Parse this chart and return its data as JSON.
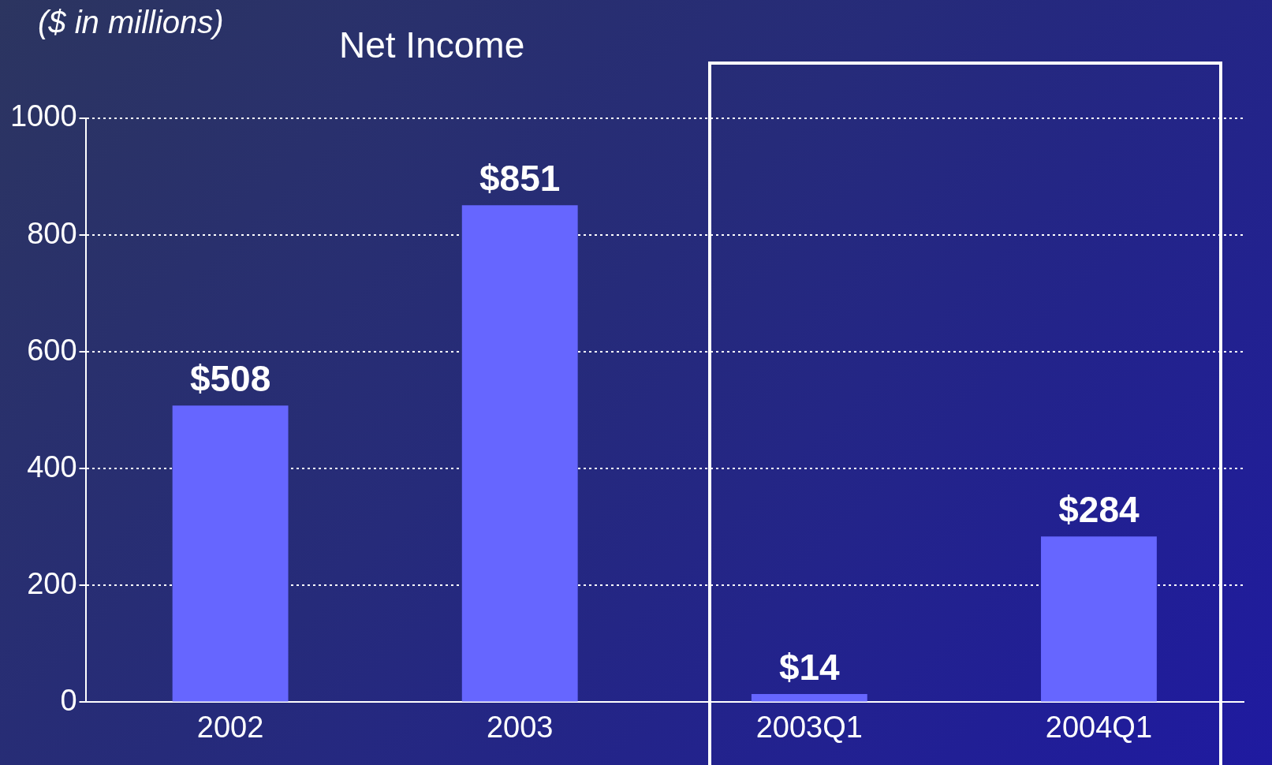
{
  "chart_data": {
    "type": "bar",
    "title": "Net Income",
    "annotations": [
      "($ in millions)"
    ],
    "categories": [
      "2002",
      "2003",
      "2003Q1",
      "2004Q1"
    ],
    "values": [
      508,
      851,
      14,
      284
    ],
    "value_labels": [
      "$508",
      "$851",
      "$14",
      "$284"
    ],
    "color": "#6666ff",
    "ylim": [
      0,
      1000
    ],
    "yticks": [
      0,
      200,
      400,
      600,
      800,
      1000
    ],
    "grid": "y",
    "line_style": "dotted",
    "legend": false
  }
}
